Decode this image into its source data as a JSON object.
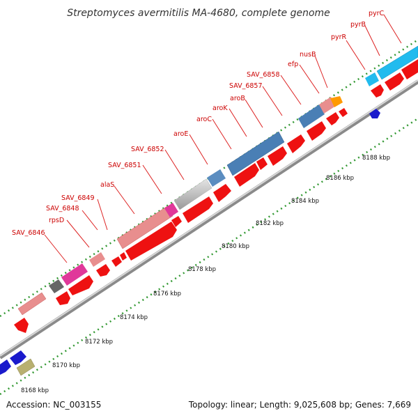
{
  "title": "Streptomyces avermitilis MA-4680, complete genome",
  "footer": {
    "accession": "Accession: NC_003155",
    "summary": "Topology: linear; Length: 9,025,608 bp; Genes: 7,669"
  },
  "scale_labels": [
    "8168 kbp",
    "8170 kbp",
    "8172 kbp",
    "8174 kbp",
    "8176 kbp",
    "8178 kbp",
    "8180 kbp",
    "8182 kbp",
    "8184 kbp",
    "8186 kbp",
    "8188 kbp"
  ],
  "gene_labels": [
    "SAV_6846",
    "SAV_6848",
    "rpsD",
    "SAV_6849",
    "alaS",
    "SAV_6851",
    "SAV_6852",
    "aroE",
    "aroC",
    "aroK",
    "aroB",
    "SAV_6857",
    "SAV_6858",
    "efp",
    "nusB",
    "pyrR",
    "pyrB",
    "pyrC"
  ],
  "colors": {
    "cds_arrow": "#ee1111",
    "backbone": "#bbbbbb",
    "label_line": "#dd2222",
    "tick": "#228822",
    "blue_arrow": "#1a1acc"
  }
}
